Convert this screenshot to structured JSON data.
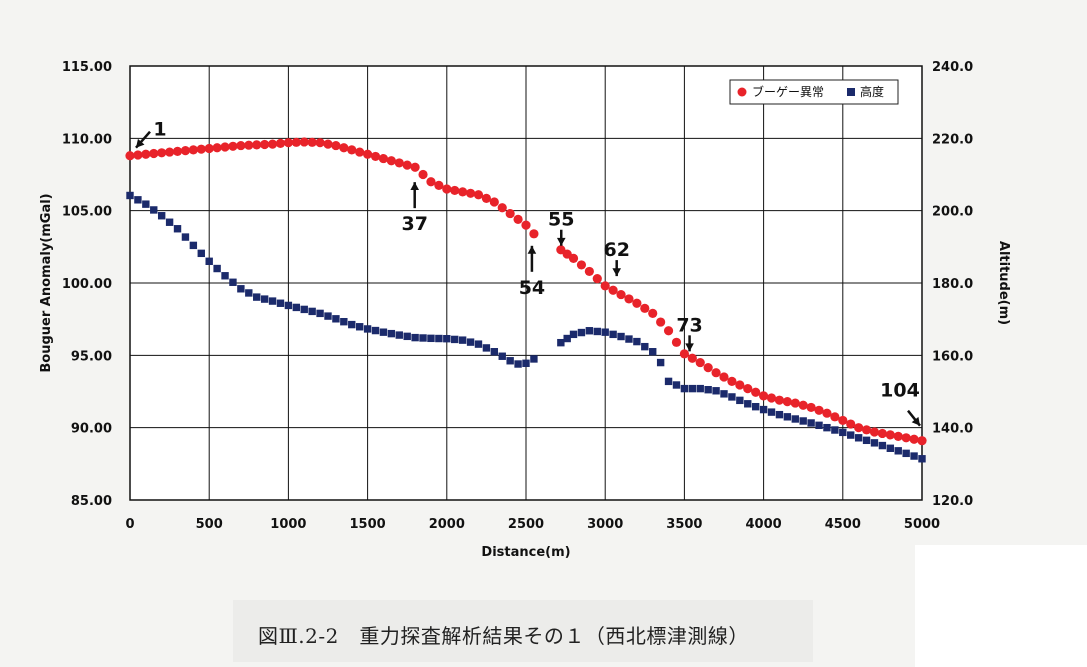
{
  "caption": "図Ⅲ.2-2　重力探査解析結果その１（西北標津測線）",
  "chart_data": {
    "type": "scatter",
    "xlabel": "Distance(m)",
    "ylabel": "Bouguer Anomaly(mGal)",
    "y2label": "Altitude(m)",
    "xlim": [
      0,
      5000
    ],
    "ylim": [
      85,
      115
    ],
    "y2lim": [
      120,
      240
    ],
    "x_ticks": [
      "0",
      "500",
      "1000",
      "1500",
      "2000",
      "2500",
      "3000",
      "3500",
      "4000",
      "4500",
      "5000"
    ],
    "y_ticks": [
      "85.00",
      "90.00",
      "95.00",
      "100.00",
      "105.00",
      "110.00",
      "115.00"
    ],
    "y2_ticks": [
      "120.0",
      "140.0",
      "160.0",
      "180.0",
      "200.0",
      "220.0",
      "240.0"
    ],
    "grid": true,
    "legend_position": "top-right",
    "series": [
      {
        "name": "ブーゲー異常",
        "axis": "left",
        "color": "#e8232a",
        "marker": "circle",
        "points": [
          [
            0,
            108.8
          ],
          [
            100,
            108.9
          ],
          [
            200,
            109.0
          ],
          [
            300,
            109.1
          ],
          [
            400,
            109.2
          ],
          [
            500,
            109.3
          ],
          [
            600,
            109.4
          ],
          [
            700,
            109.5
          ],
          [
            800,
            109.55
          ],
          [
            900,
            109.6
          ],
          [
            1000,
            109.7
          ],
          [
            1100,
            109.75
          ],
          [
            1200,
            109.7
          ],
          [
            1300,
            109.5
          ],
          [
            1400,
            109.2
          ],
          [
            1500,
            108.9
          ],
          [
            1600,
            108.6
          ],
          [
            1700,
            108.3
          ],
          [
            1800,
            108.0
          ],
          [
            1850,
            107.5
          ],
          [
            1900,
            107.0
          ],
          [
            2000,
            106.5
          ],
          [
            2100,
            106.3
          ],
          [
            2200,
            106.1
          ],
          [
            2300,
            105.6
          ],
          [
            2400,
            104.8
          ],
          [
            2500,
            104.0
          ],
          [
            2550,
            103.4
          ],
          [
            2720,
            102.3
          ],
          [
            2800,
            101.7
          ],
          [
            2900,
            100.8
          ],
          [
            3000,
            99.8
          ],
          [
            3100,
            99.2
          ],
          [
            3200,
            98.6
          ],
          [
            3300,
            97.9
          ],
          [
            3400,
            96.7
          ],
          [
            3500,
            95.1
          ],
          [
            3600,
            94.5
          ],
          [
            3700,
            93.8
          ],
          [
            3800,
            93.2
          ],
          [
            3900,
            92.7
          ],
          [
            4000,
            92.2
          ],
          [
            4100,
            91.9
          ],
          [
            4200,
            91.7
          ],
          [
            4300,
            91.4
          ],
          [
            4400,
            91.0
          ],
          [
            4500,
            90.5
          ],
          [
            4600,
            90.0
          ],
          [
            4700,
            89.7
          ],
          [
            4800,
            89.5
          ],
          [
            4900,
            89.3
          ],
          [
            5000,
            89.1
          ]
        ]
      },
      {
        "name": "高度",
        "axis": "right",
        "color": "#1b2a6b",
        "marker": "square",
        "points": [
          [
            0,
            204.2
          ],
          [
            100,
            201.8
          ],
          [
            200,
            198.6
          ],
          [
            300,
            195.0
          ],
          [
            400,
            190.4
          ],
          [
            500,
            186.0
          ],
          [
            600,
            182.0
          ],
          [
            700,
            178.4
          ],
          [
            800,
            176.1
          ],
          [
            900,
            175.0
          ],
          [
            1000,
            173.8
          ],
          [
            1100,
            172.7
          ],
          [
            1200,
            171.6
          ],
          [
            1300,
            170.1
          ],
          [
            1400,
            168.5
          ],
          [
            1500,
            167.3
          ],
          [
            1600,
            166.4
          ],
          [
            1700,
            165.6
          ],
          [
            1800,
            164.9
          ],
          [
            1900,
            164.7
          ],
          [
            2000,
            164.6
          ],
          [
            2100,
            164.2
          ],
          [
            2200,
            163.1
          ],
          [
            2300,
            161.0
          ],
          [
            2400,
            158.5
          ],
          [
            2450,
            157.6
          ],
          [
            2500,
            157.8
          ],
          [
            2550,
            159.0
          ],
          [
            2720,
            163.5
          ],
          [
            2800,
            165.8
          ],
          [
            2900,
            166.8
          ],
          [
            3000,
            166.4
          ],
          [
            3100,
            165.2
          ],
          [
            3200,
            163.8
          ],
          [
            3300,
            161.0
          ],
          [
            3350,
            158.0
          ],
          [
            3400,
            152.8
          ],
          [
            3500,
            150.8
          ],
          [
            3600,
            150.8
          ],
          [
            3700,
            150.2
          ],
          [
            3800,
            148.5
          ],
          [
            3900,
            146.6
          ],
          [
            4000,
            145.0
          ],
          [
            4100,
            143.6
          ],
          [
            4200,
            142.4
          ],
          [
            4300,
            141.3
          ],
          [
            4400,
            140.0
          ],
          [
            4500,
            138.7
          ],
          [
            4600,
            137.2
          ],
          [
            4700,
            135.8
          ],
          [
            4800,
            134.3
          ],
          [
            4900,
            132.9
          ],
          [
            5000,
            131.4
          ]
        ]
      }
    ],
    "annotations": [
      {
        "text": "1",
        "x": 0,
        "y": 108.8,
        "arrow": "southwest"
      },
      {
        "text": "37",
        "x": 1810,
        "y": 107.8,
        "arrow": "up"
      },
      {
        "text": "54",
        "x": 2550,
        "y": 103.4,
        "arrow": "up"
      },
      {
        "text": "55",
        "x": 2710,
        "y": 102.3,
        "arrow": "down"
      },
      {
        "text": "62",
        "x": 3060,
        "y": 100.2,
        "arrow": "down"
      },
      {
        "text": "73",
        "x": 3520,
        "y": 95.0,
        "arrow": "down"
      },
      {
        "text": "104",
        "x": 5000,
        "y": 89.1,
        "arrow": "southeast"
      }
    ]
  }
}
